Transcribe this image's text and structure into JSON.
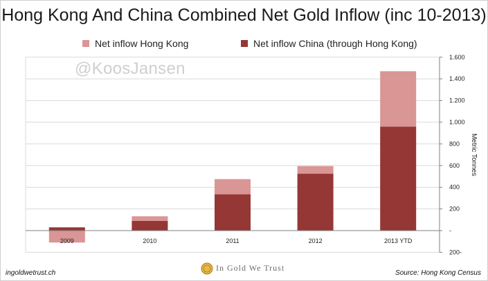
{
  "title": "Hong Kong And China Combined Net Gold Inflow (inc 10-2013)",
  "watermark": "@KoosJansen",
  "footer": {
    "left": "ingoldwetrust.ch",
    "brand": "In Gold We Trust",
    "right": "Source: Hong Kong Census"
  },
  "colors": {
    "hong_kong": "#d99694",
    "china": "#953735",
    "grid": "#d9d9d9",
    "axis": "#7f7f7f"
  },
  "chart_data": {
    "type": "bar",
    "stacked": true,
    "categories": [
      "2009",
      "2010",
      "2011",
      "2012",
      "2013 YTD"
    ],
    "series": [
      {
        "name": "Net inflow China (through Hong Kong)",
        "values": [
          30,
          90,
          335,
          525,
          960
        ]
      },
      {
        "name": "Net inflow Hong Kong",
        "values": [
          -110,
          42,
          140,
          70,
          510
        ]
      }
    ],
    "ylabel": "Metric Tonnes",
    "ylim": [
      -200,
      1600
    ],
    "yticks": [
      1600,
      1400,
      1200,
      1000,
      800,
      600,
      400,
      200,
      0,
      -200
    ],
    "ytick_labels": [
      "1.600",
      "1.400",
      "1.200",
      "1.000",
      "800",
      "600",
      "400",
      "200",
      "-",
      "200-"
    ],
    "grid": true,
    "legend_position": "top"
  }
}
